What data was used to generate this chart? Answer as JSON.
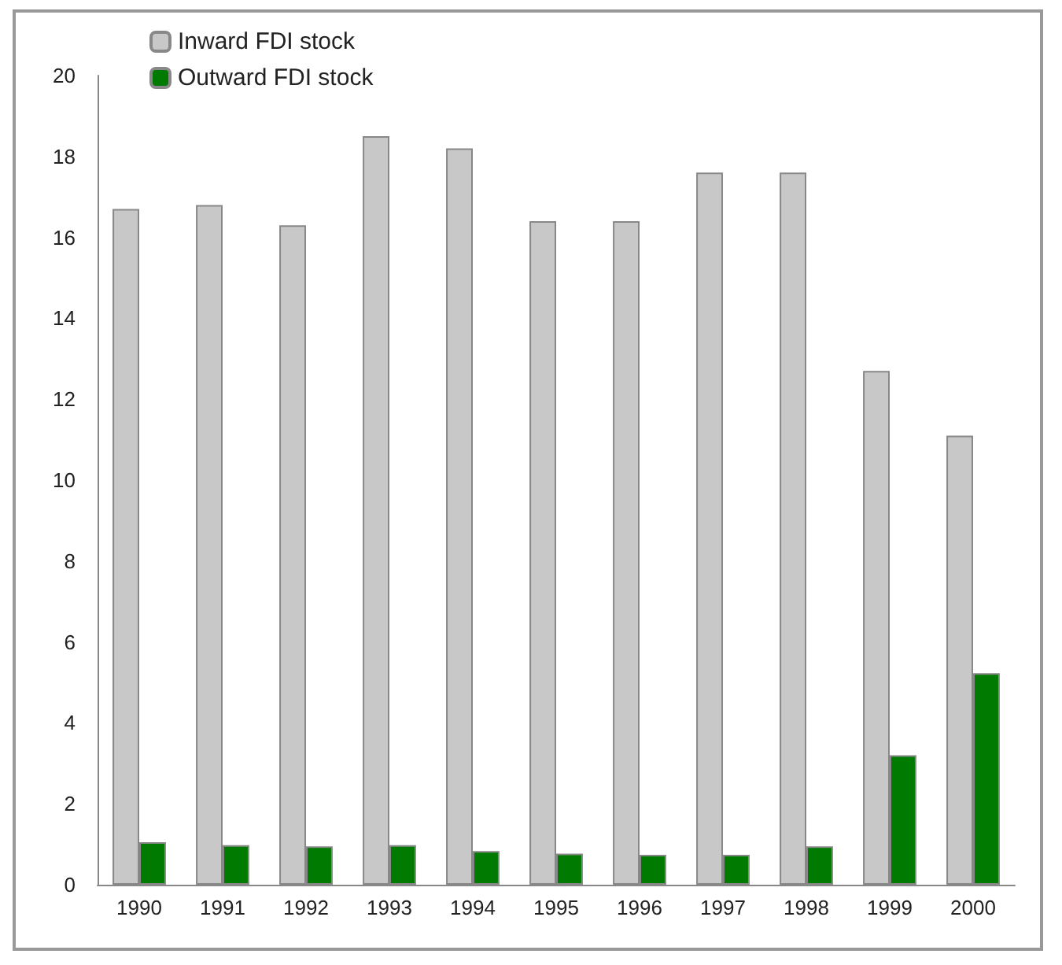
{
  "chart_data": {
    "type": "bar",
    "categories": [
      "1990",
      "1991",
      "1992",
      "1993",
      "1994",
      "1995",
      "1996",
      "1997",
      "1998",
      "1999",
      "2000"
    ],
    "series": [
      {
        "name": "Inward FDI stock",
        "color": "#c8c8c8",
        "values": [
          16.7,
          16.8,
          16.3,
          18.5,
          18.2,
          16.4,
          16.4,
          17.6,
          17.6,
          12.7,
          11.1
        ]
      },
      {
        "name": "Outward FDI stock",
        "color": "#007a00",
        "values": [
          1.05,
          0.98,
          0.95,
          0.98,
          0.83,
          0.77,
          0.74,
          0.74,
          0.95,
          3.2,
          5.23
        ]
      }
    ],
    "ylim": [
      0,
      20
    ],
    "yticks": [
      0,
      2,
      4,
      6,
      8,
      10,
      12,
      14,
      16,
      18,
      20
    ],
    "grid": false,
    "legend": "top left"
  }
}
